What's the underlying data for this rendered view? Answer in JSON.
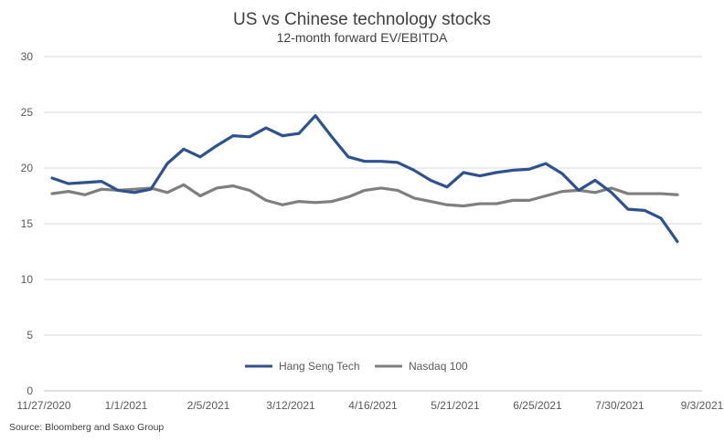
{
  "chart_data": {
    "type": "line",
    "title": "US vs Chinese technology stocks",
    "subtitle": "12-month forward EV/EBITDA",
    "xlabel": "",
    "ylabel": "",
    "ylim": [
      0,
      30
    ],
    "yticks": [
      "0",
      "5",
      "10",
      "15",
      "20",
      "25",
      "30"
    ],
    "xlim": [
      "11/27/2020",
      "9/3/2021"
    ],
    "xticks": [
      "11/27/2020",
      "1/1/2021",
      "2/5/2021",
      "3/12/2021",
      "4/16/2021",
      "5/21/2021",
      "6/25/2021",
      "7/30/2021",
      "9/3/2021"
    ],
    "grid": true,
    "legend_position": "bottom-center",
    "x_period_count": 40,
    "series": [
      {
        "name": "Hang Seng Tech",
        "color": "#2f528f",
        "x_index": [
          0,
          1,
          2,
          3,
          4,
          5,
          6,
          7,
          8,
          9,
          10,
          11,
          12,
          13,
          14,
          15,
          16,
          17,
          18,
          19,
          20,
          21,
          22,
          23,
          24,
          25,
          26,
          27,
          28,
          29,
          30,
          31,
          32,
          33,
          34,
          35,
          36,
          37,
          38
        ],
        "values": [
          19.1,
          18.6,
          18.7,
          18.8,
          18.0,
          17.8,
          18.1,
          20.4,
          21.7,
          21.0,
          22.0,
          22.9,
          22.8,
          23.6,
          22.9,
          23.1,
          24.7,
          22.8,
          21.0,
          20.6,
          20.6,
          20.5,
          19.8,
          18.9,
          18.3,
          19.6,
          19.3,
          19.6,
          19.8,
          19.9,
          20.4,
          19.5,
          18.0,
          18.9,
          17.8,
          16.3,
          16.2,
          15.5,
          13.4
        ]
      },
      {
        "name": "Nasdaq 100",
        "color": "#7f7f7f",
        "x_index": [
          0,
          1,
          2,
          3,
          4,
          5,
          6,
          7,
          8,
          9,
          10,
          11,
          12,
          13,
          14,
          15,
          16,
          17,
          18,
          19,
          20,
          21,
          22,
          23,
          24,
          25,
          26,
          27,
          28,
          29,
          30,
          31,
          32,
          33,
          34,
          35,
          36,
          37,
          38
        ],
        "values": [
          17.7,
          17.9,
          17.6,
          18.1,
          18.0,
          18.1,
          18.2,
          17.8,
          18.5,
          17.5,
          18.2,
          18.4,
          18.0,
          17.1,
          16.7,
          17.0,
          16.9,
          17.0,
          17.4,
          18.0,
          18.2,
          18.0,
          17.3,
          17.0,
          16.7,
          16.6,
          16.8,
          16.8,
          17.1,
          17.1,
          17.5,
          17.9,
          18.0,
          17.8,
          18.2,
          17.7,
          17.7,
          17.7,
          17.6
        ]
      }
    ]
  },
  "source": "Source: Bloomberg and Saxo Group"
}
